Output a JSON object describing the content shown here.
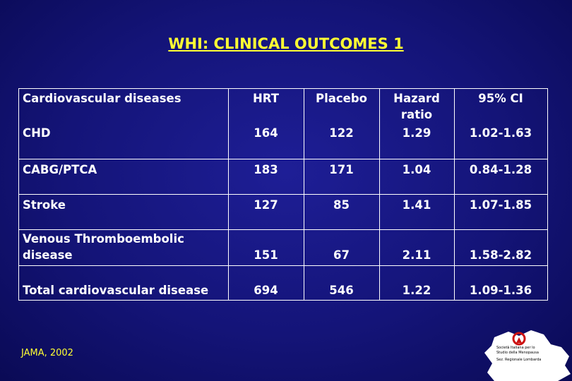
{
  "title": "WHI: CLINICAL OUTCOMES 1",
  "table": {
    "header": [
      "Cardiovascular diseases",
      "HRT",
      "Placebo",
      "Hazard ratio",
      "95% CI"
    ],
    "rows": [
      [
        "CHD",
        "164",
        "122",
        "1.29",
        "1.02-1.63"
      ],
      [
        "CABG/PTCA",
        "183",
        "171",
        "1.04",
        "0.84-1.28"
      ],
      [
        "Stroke",
        "127",
        "85",
        "1.41",
        "1.07-1.85"
      ],
      [
        "Venous Thromboembolic disease",
        "151",
        "67",
        "2.11",
        "1.58-2.82"
      ],
      [
        "Total cardiovascular disease",
        "694",
        "546",
        "1.22",
        "1.09-1.36"
      ]
    ]
  },
  "source": "JAMA, 2002",
  "logo": {
    "lines": [
      "Società Italiana per lo",
      "Studio della Menopausa",
      "Sez. Regionale Lombarda"
    ]
  }
}
